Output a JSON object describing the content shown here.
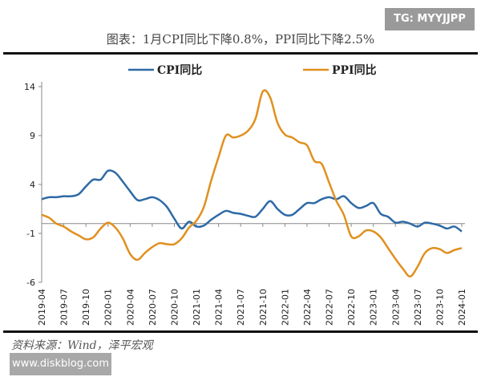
{
  "watermark_top": "TG: MYYJJPP",
  "watermark_bottom": "www.diskblog.com",
  "source": "资料来源：Wind，泽平宏观",
  "chart_data": {
    "type": "line",
    "title": "图表：1月CPI同比下降0.8%，PPI同比下降2.5%",
    "xlabel": "",
    "ylabel": "",
    "ylim": [
      -6,
      14
    ],
    "yticks": [
      "14",
      "9",
      "4",
      "-1",
      "-6"
    ],
    "xticks": [
      "2019-04",
      "2019-07",
      "2019-10",
      "2020-01",
      "2020-04",
      "2020-07",
      "2020-10",
      "2021-01",
      "2021-04",
      "2021-07",
      "2021-10",
      "2022-01",
      "2022-04",
      "2022-07",
      "2022-10",
      "2023-01",
      "2023-04",
      "2023-07",
      "2023-10",
      "2024-01"
    ],
    "legend": "top",
    "grid": false,
    "x_start": "2019-04",
    "x_end": "2024-01",
    "frequency": "monthly",
    "series": [
      {
        "name": "CPI同比",
        "color": "#2e6aa6",
        "values": [
          2.5,
          2.7,
          2.7,
          2.8,
          2.8,
          3.0,
          3.8,
          4.5,
          4.5,
          5.4,
          5.2,
          4.3,
          3.3,
          2.4,
          2.5,
          2.7,
          2.4,
          1.7,
          0.5,
          -0.5,
          0.2,
          -0.3,
          -0.2,
          0.4,
          0.9,
          1.3,
          1.1,
          1.0,
          0.8,
          0.7,
          1.5,
          2.3,
          1.5,
          0.9,
          0.9,
          1.5,
          2.1,
          2.1,
          2.5,
          2.7,
          2.5,
          2.8,
          2.1,
          1.6,
          1.8,
          2.1,
          1.0,
          0.7,
          0.1,
          0.2,
          0.0,
          -0.3,
          0.1,
          0.0,
          -0.2,
          -0.5,
          -0.3,
          -0.8
        ]
      },
      {
        "name": "PPI同比",
        "color": "#e0901f",
        "values": [
          0.9,
          0.6,
          0.0,
          -0.3,
          -0.8,
          -1.2,
          -1.6,
          -1.4,
          -0.5,
          0.1,
          -0.4,
          -1.5,
          -3.1,
          -3.7,
          -3.0,
          -2.4,
          -2.0,
          -2.1,
          -2.1,
          -1.5,
          -0.4,
          0.3,
          1.7,
          4.4,
          6.8,
          9.0,
          8.8,
          9.0,
          9.5,
          10.7,
          13.5,
          12.9,
          10.3,
          9.1,
          8.8,
          8.3,
          8.0,
          6.4,
          6.1,
          4.2,
          2.3,
          0.9,
          -1.3,
          -1.3,
          -0.7,
          -0.8,
          -1.4,
          -2.5,
          -3.6,
          -4.6,
          -5.4,
          -4.4,
          -3.0,
          -2.5,
          -2.6,
          -3.0,
          -2.7,
          -2.5
        ]
      }
    ]
  }
}
